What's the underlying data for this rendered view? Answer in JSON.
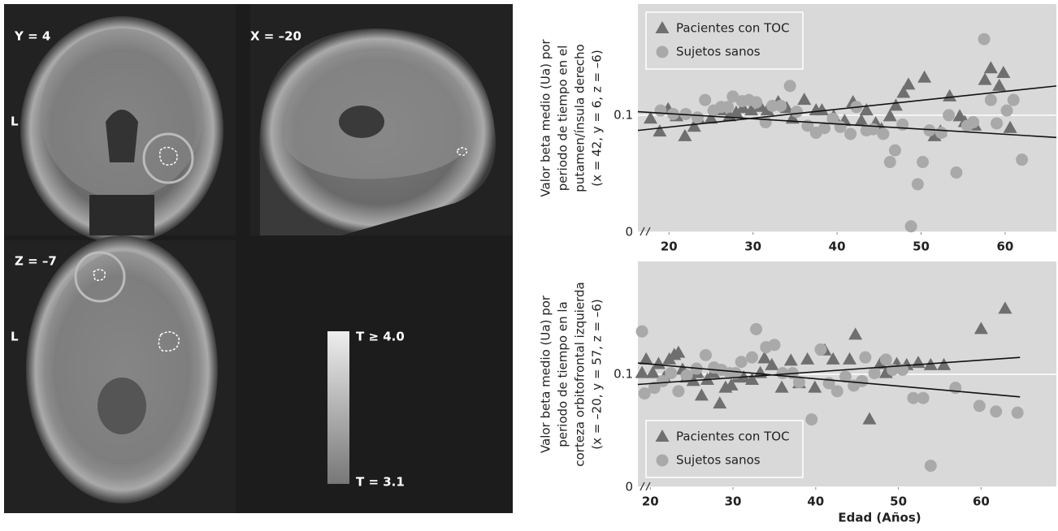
{
  "brain_panel": {
    "views": [
      "Y = 4",
      "X = –20",
      "Z = –7"
    ],
    "side_labels": [
      "L",
      "L"
    ],
    "colorbar": {
      "max_label": "T ≥ 4.0",
      "min_label": "T = 3.1"
    }
  },
  "chart_data": [
    {
      "type": "scatter",
      "ylabel": [
        "Valor beta medio (Ua) por",
        "periodo de tiempo en el",
        "putamen/ínsula derecho",
        "(x = 42, y = 6, z = –6)"
      ],
      "xlim": [
        16.3,
        66.1
      ],
      "ylim": [
        0,
        0.195
      ],
      "xticks": [
        20,
        30,
        40,
        50,
        60
      ],
      "yticks": [
        0,
        0.1
      ],
      "grid": true,
      "legend": "upper left",
      "series": [
        {
          "name": "Pacientes con TOC",
          "color": "#6f6f6f",
          "marker": "triangle",
          "x": [
            17.8,
            18.9,
            19.9,
            20.9,
            21.9,
            23.0,
            23.5,
            25.0,
            26.1,
            27.2,
            28.0,
            28.8,
            29.8,
            30.9,
            31.7,
            33.0,
            34.0,
            34.7,
            36.1,
            37.5,
            38.2,
            39.6,
            40.9,
            41.9,
            42.9,
            43.5,
            44.6,
            45.3,
            46.3,
            47.0,
            47.9,
            48.5,
            50.4,
            51.6,
            52.3,
            53.4,
            54.6,
            55.2,
            56.4,
            57.6,
            58.3,
            59.3,
            59.8,
            60.6
          ],
          "values": [
            0.097,
            0.086,
            0.105,
            0.099,
            0.082,
            0.09,
            0.097,
            0.097,
            0.104,
            0.099,
            0.102,
            0.106,
            0.104,
            0.107,
            0.104,
            0.111,
            0.106,
            0.097,
            0.113,
            0.104,
            0.104,
            0.099,
            0.095,
            0.111,
            0.095,
            0.104,
            0.093,
            0.088,
            0.099,
            0.108,
            0.119,
            0.126,
            0.132,
            0.082,
            0.086,
            0.116,
            0.099,
            0.094,
            0.091,
            0.13,
            0.14,
            0.125,
            0.136,
            0.089
          ],
          "trend": {
            "x": [
              16.3,
              66.1
            ],
            "y": [
              0.087,
              0.125
            ]
          }
        },
        {
          "name": "Sujetos sanos",
          "color": "#a9a9a9",
          "marker": "circle",
          "x": [
            19.0,
            20.5,
            22.0,
            23.4,
            24.3,
            25.3,
            26.2,
            27.0,
            27.6,
            28.7,
            29.5,
            30.4,
            31.5,
            32.3,
            33.3,
            34.4,
            35.2,
            36.5,
            37.5,
            38.5,
            39.5,
            40.4,
            41.6,
            42.3,
            43.5,
            44.3,
            45.5,
            46.3,
            46.9,
            47.8,
            48.8,
            49.6,
            50.2,
            51.0,
            52.4,
            53.3,
            54.2,
            55.5,
            56.2,
            57.5,
            58.3,
            59.0,
            60.2,
            61.0,
            62.0
          ],
          "values": [
            0.104,
            0.101,
            0.101,
            0.098,
            0.113,
            0.104,
            0.107,
            0.107,
            0.116,
            0.112,
            0.113,
            0.111,
            0.094,
            0.108,
            0.108,
            0.125,
            0.103,
            0.091,
            0.085,
            0.089,
            0.097,
            0.09,
            0.084,
            0.107,
            0.087,
            0.088,
            0.084,
            0.06,
            0.07,
            0.092,
            0.005,
            0.041,
            0.06,
            0.087,
            0.085,
            0.1,
            0.051,
            0.091,
            0.094,
            0.165,
            0.113,
            0.093,
            0.104,
            0.113,
            0.062
          ],
          "trend": {
            "x": [
              16.3,
              66.1
            ],
            "y": [
              0.103,
              0.081
            ]
          }
        }
      ]
    },
    {
      "type": "scatter",
      "ylabel": [
        "Valor beta medio (Ua) por",
        "periodo de tiempo en la",
        "corteza orbitofrontal izquierda",
        "(x = –20, y = 57, z = –6)"
      ],
      "xlabel": "Edad (Años)",
      "xlim": [
        18.5,
        69.1
      ],
      "ylim": [
        0,
        0.2
      ],
      "xticks": [
        20,
        30,
        40,
        50,
        60
      ],
      "yticks": [
        0,
        0.1
      ],
      "grid": true,
      "legend": "lower left",
      "series": [
        {
          "name": "Pacientes con TOC",
          "color": "#6f6f6f",
          "marker": "triangle",
          "x": [
            19.0,
            19.5,
            20.3,
            21.0,
            21.7,
            22.3,
            22.9,
            23.4,
            23.9,
            24.4,
            25.2,
            25.7,
            26.2,
            26.9,
            27.6,
            28.4,
            29.1,
            29.8,
            30.6,
            31.3,
            32.3,
            33.3,
            33.8,
            34.7,
            35.9,
            37.0,
            38.0,
            39.0,
            39.9,
            41.1,
            42.1,
            44.1,
            44.8,
            46.5,
            47.8,
            48.5,
            49.8,
            51.0,
            52.4,
            53.9,
            55.5,
            60.0,
            62.9
          ],
          "values": [
            0.101,
            0.113,
            0.101,
            0.109,
            0.097,
            0.113,
            0.117,
            0.119,
            0.104,
            0.097,
            0.094,
            0.101,
            0.081,
            0.095,
            0.101,
            0.074,
            0.088,
            0.09,
            0.097,
            0.097,
            0.095,
            0.101,
            0.114,
            0.108,
            0.088,
            0.112,
            0.092,
            0.113,
            0.088,
            0.121,
            0.113,
            0.113,
            0.135,
            0.06,
            0.109,
            0.101,
            0.109,
            0.108,
            0.11,
            0.108,
            0.108,
            0.14,
            0.158
          ],
          "trend": {
            "x": [
              18.5,
              64.7
            ],
            "y": [
              0.091,
              0.115
            ]
          }
        },
        {
          "name": "Sujetos sanos",
          "color": "#a9a9a9",
          "marker": "circle",
          "x": [
            19.0,
            19.3,
            20.5,
            21.5,
            22.5,
            23.4,
            24.4,
            25.6,
            26.7,
            27.7,
            28.6,
            29.6,
            30.3,
            31.0,
            32.3,
            32.8,
            34.0,
            35.0,
            36.0,
            37.2,
            38.0,
            39.5,
            40.6,
            41.6,
            42.6,
            43.6,
            44.6,
            45.6,
            46.0,
            47.1,
            48.5,
            49.3,
            50.5,
            51.8,
            53.0,
            53.9,
            56.9,
            59.8,
            61.8,
            64.4
          ],
          "values": [
            0.138,
            0.083,
            0.088,
            0.094,
            0.101,
            0.085,
            0.099,
            0.105,
            0.117,
            0.106,
            0.104,
            0.101,
            0.101,
            0.111,
            0.115,
            0.14,
            0.124,
            0.126,
            0.101,
            0.101,
            0.093,
            0.06,
            0.122,
            0.092,
            0.085,
            0.098,
            0.09,
            0.094,
            0.115,
            0.101,
            0.113,
            0.104,
            0.104,
            0.079,
            0.079,
            0.019,
            0.088,
            0.072,
            0.067,
            0.066
          ],
          "trend": {
            "x": [
              18.5,
              64.7
            ],
            "y": [
              0.11,
              0.08
            ]
          }
        }
      ]
    }
  ]
}
